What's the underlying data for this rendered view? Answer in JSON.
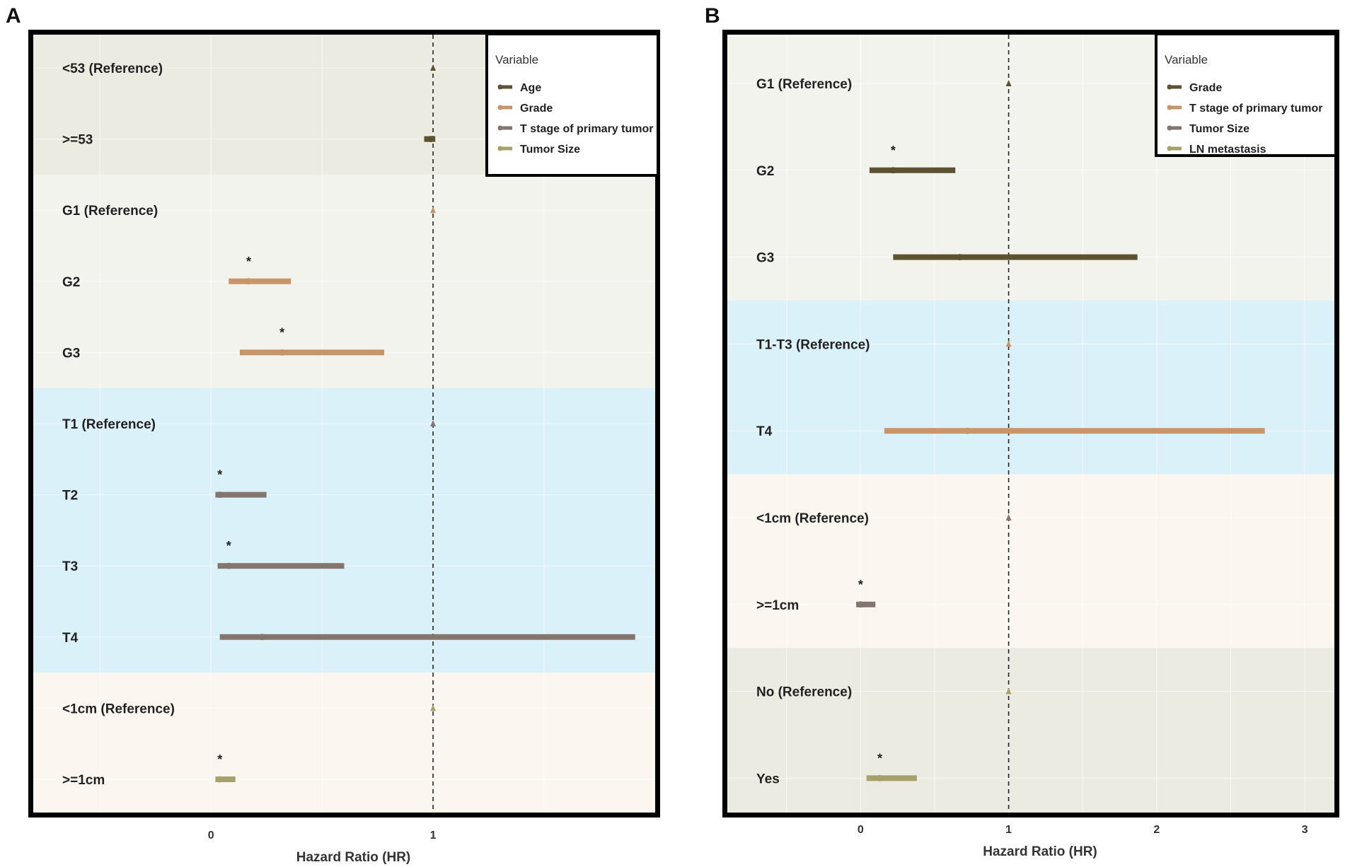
{
  "chart_data": [
    {
      "type": "forest",
      "panel": "A",
      "xlabel": "Hazard Ratio (HR)",
      "xlim": [
        -0.8,
        2.0
      ],
      "xticks": [
        0,
        1
      ],
      "legend": {
        "title": "Variable",
        "position": "top-right",
        "items": [
          {
            "name": "Age",
            "color": "#5c5230"
          },
          {
            "name": "Grade",
            "color": "#c8956a"
          },
          {
            "name": "T stage of primary tumor",
            "color": "#84766e"
          },
          {
            "name": "Tumor Size",
            "color": "#a8a06a"
          }
        ]
      },
      "groups": [
        {
          "variable": "Age",
          "color": "#5c5230",
          "bg": "#ecebe2",
          "rows": [
            {
              "label": "<53 (Reference)",
              "hr": 1.0,
              "lo": 1.0,
              "hi": 1.0,
              "reference": true,
              "sig": false
            },
            {
              "label": ">=53",
              "hr": 0.99,
              "lo": 0.96,
              "hi": 1.01,
              "reference": false,
              "sig": false
            }
          ]
        },
        {
          "variable": "Grade",
          "color": "#c8956a",
          "bg": "#f3f3ee",
          "rows": [
            {
              "label": "G1 (Reference)",
              "hr": 1.0,
              "lo": 1.0,
              "hi": 1.0,
              "reference": true,
              "sig": false
            },
            {
              "label": "G2",
              "hr": 0.17,
              "lo": 0.08,
              "hi": 0.36,
              "reference": false,
              "sig": true
            },
            {
              "label": "G3",
              "hr": 0.32,
              "lo": 0.13,
              "hi": 0.78,
              "reference": false,
              "sig": true
            }
          ]
        },
        {
          "variable": "T stage of primary tumor",
          "color": "#84766e",
          "bg": "#dbf1f9",
          "rows": [
            {
              "label": "T1 (Reference)",
              "hr": 1.0,
              "lo": 1.0,
              "hi": 1.0,
              "reference": true,
              "sig": false
            },
            {
              "label": "T2",
              "hr": 0.04,
              "lo": 0.02,
              "hi": 0.25,
              "reference": false,
              "sig": true
            },
            {
              "label": "T3",
              "hr": 0.08,
              "lo": 0.03,
              "hi": 0.6,
              "reference": false,
              "sig": true
            },
            {
              "label": "T4",
              "hr": 0.23,
              "lo": 0.04,
              "hi": 1.91,
              "reference": false,
              "sig": false
            }
          ]
        },
        {
          "variable": "Tumor Size",
          "color": "#a8a06a",
          "bg": "#fbf7f0",
          "rows": [
            {
              "label": "<1cm (Reference)",
              "hr": 1.0,
              "lo": 1.0,
              "hi": 1.0,
              "reference": true,
              "sig": false
            },
            {
              "label": ">=1cm",
              "hr": 0.04,
              "lo": 0.02,
              "hi": 0.11,
              "reference": false,
              "sig": true
            }
          ]
        }
      ]
    },
    {
      "type": "forest",
      "panel": "B",
      "xlabel": "Hazard Ratio (HR)",
      "xlim": [
        -0.9,
        3.2
      ],
      "xticks": [
        0,
        1,
        2,
        3
      ],
      "legend": {
        "title": "Variable",
        "position": "top-right",
        "items": [
          {
            "name": "Grade",
            "color": "#5c5230"
          },
          {
            "name": "T stage of primary tumor",
            "color": "#c8956a"
          },
          {
            "name": "Tumor Size",
            "color": "#84766e"
          },
          {
            "name": "LN metastasis",
            "color": "#a8a06a"
          }
        ]
      },
      "groups": [
        {
          "variable": "Grade",
          "color": "#5c5230",
          "bg": "#f3f3ee",
          "rows": [
            {
              "label": "G1 (Reference)",
              "hr": 1.0,
              "lo": 1.0,
              "hi": 1.0,
              "reference": true,
              "sig": false
            },
            {
              "label": "G2",
              "hr": 0.22,
              "lo": 0.06,
              "hi": 0.64,
              "reference": false,
              "sig": true
            },
            {
              "label": "G3",
              "hr": 0.67,
              "lo": 0.22,
              "hi": 1.87,
              "reference": false,
              "sig": false
            }
          ]
        },
        {
          "variable": "T stage of primary tumor",
          "color": "#c8956a",
          "bg": "#dbf1f9",
          "rows": [
            {
              "label": "T1-T3 (Reference)",
              "hr": 1.0,
              "lo": 1.0,
              "hi": 1.0,
              "reference": true,
              "sig": false
            },
            {
              "label": "T4",
              "hr": 0.72,
              "lo": 0.16,
              "hi": 2.73,
              "reference": false,
              "sig": false
            }
          ]
        },
        {
          "variable": "Tumor Size",
          "color": "#84766e",
          "bg": "#fbf7f0",
          "rows": [
            {
              "label": "<1cm (Reference)",
              "hr": 1.0,
              "lo": 1.0,
              "hi": 1.0,
              "reference": true,
              "sig": false
            },
            {
              "label": ">=1cm",
              "hr": 0.0,
              "lo": -0.03,
              "hi": 0.1,
              "reference": false,
              "sig": true
            }
          ]
        },
        {
          "variable": "LN metastasis",
          "color": "#a8a06a",
          "bg": "#ecebe2",
          "rows": [
            {
              "label": "No (Reference)",
              "hr": 1.0,
              "lo": 1.0,
              "hi": 1.0,
              "reference": true,
              "sig": false
            },
            {
              "label": "Yes",
              "hr": 0.13,
              "lo": 0.04,
              "hi": 0.38,
              "reference": false,
              "sig": true
            }
          ]
        }
      ]
    }
  ]
}
